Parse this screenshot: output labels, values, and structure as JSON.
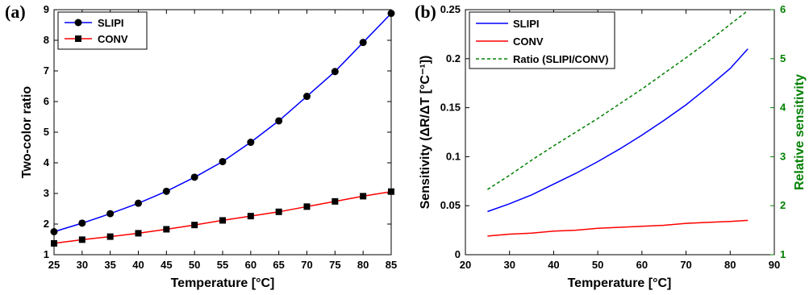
{
  "panels": {
    "a": {
      "label": "(a)",
      "xlabel": "Temperature [°C]",
      "ylabel": "Two-color ratio"
    },
    "b": {
      "label": "(b)",
      "xlabel": "Temperature [°C]",
      "ylabel": "Sensitivity (ΔR/ΔT [°C⁻¹])",
      "y2label": "Relative sensitivity"
    }
  },
  "colors": {
    "slipi": "#0000ff",
    "conv": "#ff0000",
    "ratio": "#008000"
  },
  "chart_data": [
    {
      "type": "line",
      "panel": "a",
      "x": [
        25,
        30,
        35,
        40,
        45,
        50,
        55,
        60,
        65,
        70,
        75,
        80,
        85
      ],
      "xlim": [
        25,
        85
      ],
      "ylim": [
        1,
        9
      ],
      "xticks": [
        25,
        30,
        35,
        40,
        45,
        50,
        55,
        60,
        65,
        70,
        75,
        80,
        85
      ],
      "yticks": [
        1,
        2,
        3,
        4,
        5,
        6,
        7,
        8,
        9
      ],
      "xlabel": "Temperature [°C]",
      "ylabel": "Two-color ratio",
      "legend": "top-left",
      "grid": false,
      "series": [
        {
          "name": "SLIPI",
          "marker": "circle",
          "color": "#0000ff",
          "values": [
            1.75,
            2.03,
            2.34,
            2.68,
            3.07,
            3.53,
            4.04,
            4.67,
            5.37,
            6.17,
            6.98,
            7.93,
            8.88
          ]
        },
        {
          "name": "CONV",
          "marker": "square",
          "color": "#ff0000",
          "values": [
            1.37,
            1.49,
            1.59,
            1.7,
            1.83,
            1.97,
            2.12,
            2.26,
            2.4,
            2.57,
            2.74,
            2.91,
            3.06
          ]
        }
      ]
    },
    {
      "type": "line",
      "panel": "b",
      "x": [
        25,
        30,
        35,
        40,
        45,
        50,
        55,
        60,
        65,
        70,
        75,
        80,
        84
      ],
      "xlim": [
        20,
        90
      ],
      "ylim": [
        0,
        0.25
      ],
      "y2lim": [
        1,
        6
      ],
      "xticks": [
        20,
        30,
        40,
        50,
        60,
        70,
        80,
        90
      ],
      "yticks": [
        0,
        0.05,
        0.1,
        0.15,
        0.2,
        0.25
      ],
      "y2ticks": [
        1,
        2,
        3,
        4,
        5,
        6
      ],
      "xlabel": "Temperature [°C]",
      "ylabel": "Sensitivity (ΔR/ΔT [°C⁻¹])",
      "y2label": "Relative sensitivity",
      "legend": "top-left",
      "grid": false,
      "series": [
        {
          "name": "SLIPI",
          "style": "solid",
          "axis": "left",
          "color": "#0000ff",
          "values": [
            0.044,
            0.052,
            0.061,
            0.072,
            0.083,
            0.095,
            0.108,
            0.122,
            0.137,
            0.153,
            0.171,
            0.19,
            0.21
          ]
        },
        {
          "name": "CONV",
          "style": "solid",
          "axis": "left",
          "color": "#ff0000",
          "values": [
            0.019,
            0.021,
            0.022,
            0.024,
            0.025,
            0.027,
            0.028,
            0.029,
            0.03,
            0.032,
            0.033,
            0.034,
            0.035
          ]
        },
        {
          "name": "Ratio (SLIPI/CONV)",
          "style": "dashed",
          "axis": "right",
          "color": "#008000",
          "values": [
            2.33,
            2.62,
            2.93,
            3.22,
            3.5,
            3.78,
            4.08,
            4.38,
            4.7,
            5.02,
            5.35,
            5.7,
            5.98
          ]
        }
      ]
    }
  ]
}
